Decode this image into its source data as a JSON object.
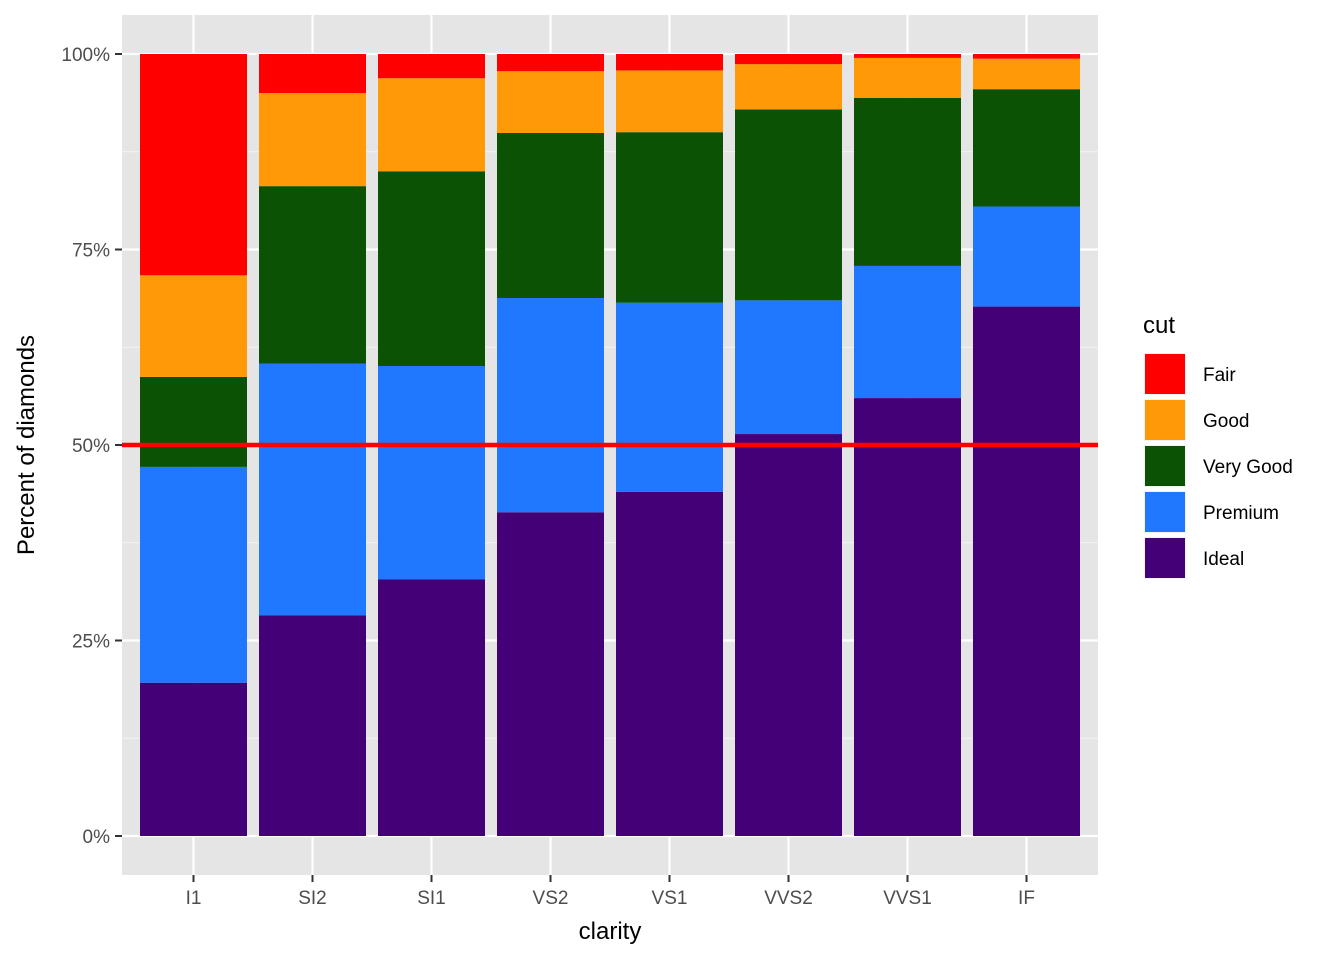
{
  "chart_data": {
    "type": "bar",
    "stacked": "percent",
    "categories": [
      "I1",
      "SI2",
      "SI1",
      "VS2",
      "VS1",
      "VVS2",
      "VVS1",
      "IF"
    ],
    "series": [
      {
        "name": "Ideal",
        "color": "#440077",
        "values": [
          19.6,
          28.2,
          32.8,
          41.4,
          44.0,
          51.4,
          56.0,
          67.7
        ]
      },
      {
        "name": "Premium",
        "color": "#1f78ff",
        "values": [
          27.6,
          32.2,
          27.3,
          27.4,
          24.2,
          17.1,
          16.9,
          12.8
        ]
      },
      {
        "name": "Very Good",
        "color": "#0b5205",
        "values": [
          11.5,
          22.7,
          24.9,
          21.1,
          21.8,
          24.4,
          21.5,
          15.0
        ]
      },
      {
        "name": "Good",
        "color": "#ff9908",
        "values": [
          13.0,
          11.9,
          11.9,
          7.9,
          7.9,
          5.8,
          5.1,
          3.9
        ]
      },
      {
        "name": "Fair",
        "color": "#ff0000",
        "values": [
          28.3,
          5.0,
          3.1,
          2.2,
          2.1,
          1.3,
          0.5,
          0.6
        ]
      }
    ],
    "legend_order": [
      "Fair",
      "Good",
      "Very Good",
      "Premium",
      "Ideal"
    ],
    "xlabel": "clarity",
    "ylabel": "Percent of diamonds",
    "legend_title": "cut",
    "y_ticks": [
      0,
      25,
      50,
      75,
      100
    ],
    "y_tick_labels": [
      "0%",
      "25%",
      "50%",
      "75%",
      "100%"
    ],
    "ylim": [
      0,
      100
    ],
    "reference_line": {
      "y": 50,
      "color": "#ff0000"
    },
    "grid": true,
    "legend_position": "right",
    "panel_background": "#e5e5e5"
  }
}
